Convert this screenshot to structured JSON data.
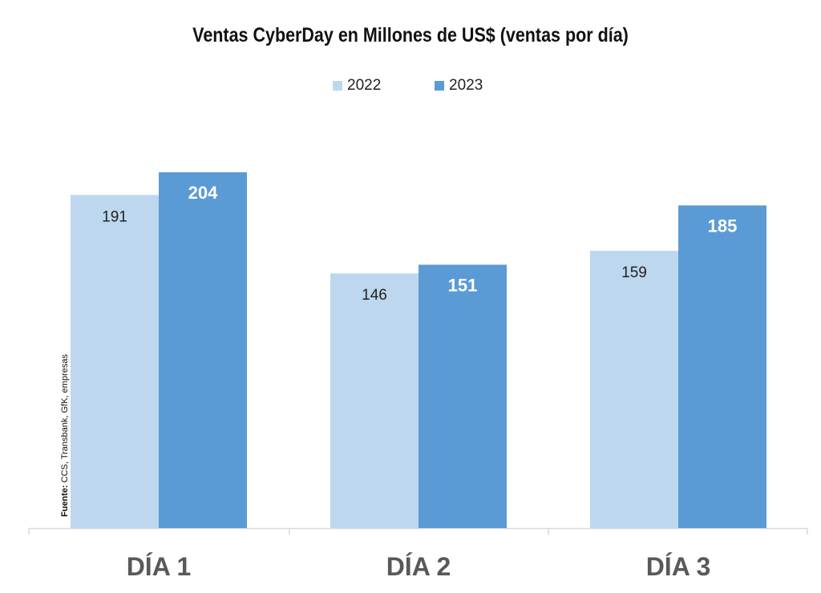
{
  "chart_data": {
    "type": "bar",
    "title": "Ventas CyberDay en Millones de US$ (ventas por día)",
    "categories": [
      "DÍA 1",
      "DÍA 2",
      "DÍA 3"
    ],
    "series": [
      {
        "name": "2022",
        "values": [
          191,
          146,
          159
        ],
        "color": "#bdd7ee"
      },
      {
        "name": "2023",
        "values": [
          204,
          151,
          185
        ],
        "color": "#5b9bd5"
      }
    ],
    "ylim": [
      0,
      204
    ],
    "grid": false,
    "legend_position": "top-center"
  },
  "source": {
    "label": "Fuente:",
    "text": " CCS, Transbank, GfK, empresas"
  }
}
